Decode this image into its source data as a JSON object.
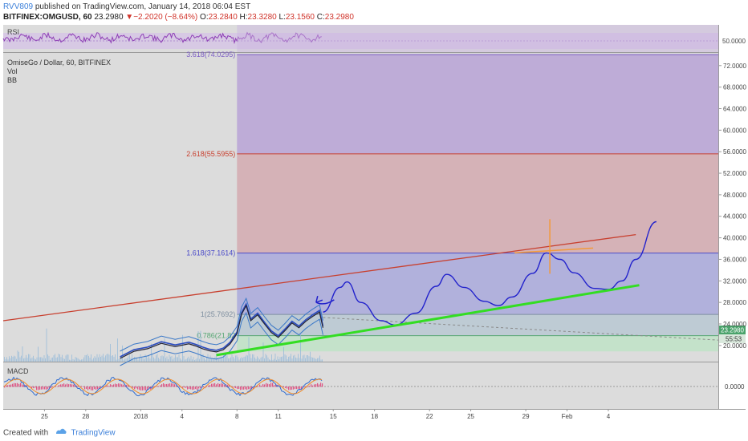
{
  "header": {
    "author": "RVV809",
    "published_text": "published on TradingView.com, January 14, 2018 06:04 EST",
    "symbol": "BITFINEX:OMGUSD, 60",
    "last_price": "23.2980",
    "change_arrow": "▼",
    "change": "−2.2020 (−8.64%)",
    "open_label": "O:",
    "open": "23.2840",
    "high_label": "H:",
    "high": "23.3280",
    "low_label": "L:",
    "low": "23.1560",
    "close_label": "C:",
    "close": "23.2980"
  },
  "panes": {
    "rsi_label": "RSI",
    "rsi_level": "50.0000",
    "main_legend": [
      "OmiseGo / Dollar, 60, BITFINEX",
      "Vol",
      "BB"
    ],
    "macd_label": "MACD",
    "macd_level": "0.0000"
  },
  "price_tags": {
    "last": "23.2980",
    "countdown": "55:53"
  },
  "footer": {
    "created_with": "Created with",
    "brand": "TradingView"
  },
  "colors": {
    "fib_top_zone": "#b9a3d6",
    "fib_mid_zone": "#d4aab0",
    "fib_low_zone": "#a9a9dc",
    "rising_line": "#c8402f",
    "support_line": "#33dd22",
    "projection_path": "#2222cc",
    "target_marker": "#f39a3a",
    "price_line": "#222233",
    "bollinger": "#2a4bbf"
  },
  "chart_data": {
    "type": "line",
    "title": "OmiseGo / Dollar, 60, BITFINEX",
    "x_tick_labels": [
      "25",
      "28",
      "2018",
      "4",
      "8",
      "11",
      "15",
      "18",
      "22",
      "25",
      "29",
      "Feb",
      "4"
    ],
    "x_tick_dates": [
      "2017-12-25",
      "2017-12-28",
      "2018-01-01",
      "2018-01-04",
      "2018-01-08",
      "2018-01-11",
      "2018-01-15",
      "2018-01-18",
      "2018-01-22",
      "2018-01-25",
      "2018-01-29",
      "2018-02-01",
      "2018-02-04"
    ],
    "y_tick_labels": [
      "72.0000",
      "68.0000",
      "64.0000",
      "60.0000",
      "56.0000",
      "52.0000",
      "48.0000",
      "44.0000",
      "40.0000",
      "36.0000",
      "32.0000",
      "28.0000",
      "24.0000",
      "20.0000"
    ],
    "ylim": [
      17.0,
      74.5
    ],
    "xlim": [
      "2017-12-22T00:00",
      "2018-02-12T00:00"
    ],
    "fib_levels": [
      {
        "label": "3.618(74.0295)",
        "value": 74.0295
      },
      {
        "label": "2.618(55.5955)",
        "value": 55.5955
      },
      {
        "label": "1.618(37.1614)",
        "value": 37.1614
      },
      {
        "label": "1(25.7692)",
        "value": 25.7692
      },
      {
        "label": "0.786(21.82",
        "value": 21.82
      }
    ],
    "series": [
      {
        "name": "OMGUSD",
        "x": [
          "2017-12-30T12:00",
          "2017-12-31T12:00",
          "2018-01-01T12:00",
          "2018-01-02T12:00",
          "2018-01-03T12:00",
          "2018-01-04T12:00",
          "2018-01-05T00:00",
          "2018-01-05T12:00",
          "2018-01-06T00:00",
          "2018-01-06T12:00",
          "2018-01-07T00:00",
          "2018-01-07T12:00",
          "2018-01-08T00:00",
          "2018-01-08T08:00",
          "2018-01-08T16:00",
          "2018-01-09T00:00",
          "2018-01-09T12:00",
          "2018-01-10T00:00",
          "2018-01-10T12:00",
          "2018-01-11T00:00",
          "2018-01-11T12:00",
          "2018-01-12T00:00",
          "2018-01-12T12:00",
          "2018-01-13T00:00",
          "2018-01-13T12:00",
          "2018-01-14T00:00",
          "2018-01-14T06:00"
        ],
        "values": [
          17.6,
          18.9,
          19.4,
          20.4,
          19.8,
          20.3,
          19.9,
          19.4,
          19.0,
          18.8,
          19.2,
          20.3,
          22.2,
          25.8,
          27.4,
          24.6,
          25.7,
          24.0,
          22.4,
          21.5,
          22.8,
          24.2,
          23.3,
          24.5,
          25.4,
          26.2,
          23.3
        ]
      },
      {
        "name": "Projection",
        "x": [
          "2018-01-14T06:00",
          "2018-01-15T12:00",
          "2018-01-16T00:00",
          "2018-01-17T00:00",
          "2018-01-18T12:00",
          "2018-01-19T12:00",
          "2018-01-21T00:00",
          "2018-01-22T12:00",
          "2018-01-23T06:00",
          "2018-01-24T12:00",
          "2018-01-26T00:00",
          "2018-01-27T00:00",
          "2018-01-28T00:00",
          "2018-01-29T12:00",
          "2018-01-30T12:00",
          "2018-01-31T12:00",
          "2018-02-01T12:00",
          "2018-02-03T00:00",
          "2018-02-04T00:00",
          "2018-02-05T00:00",
          "2018-02-06T00:00",
          "2018-02-07T12:00"
        ],
        "values": [
          26.2,
          30.8,
          31.8,
          28.0,
          24.6,
          23.8,
          26.0,
          31.0,
          33.2,
          30.8,
          28.2,
          27.4,
          29.0,
          33.4,
          37.2,
          36.0,
          33.5,
          30.6,
          30.4,
          32.0,
          36.0,
          43.0
        ]
      },
      {
        "name": "Rising resistance",
        "x": [
          "2017-12-22T00:00",
          "2018-02-06T00:00"
        ],
        "values": [
          24.6,
          40.6
        ]
      },
      {
        "name": "Support",
        "x": [
          "2018-01-06T12:00",
          "2018-02-06T06:00"
        ],
        "values": [
          18.2,
          31.2
        ]
      }
    ],
    "annotations": [
      {
        "type": "arrow",
        "from": {
          "x": "2018-01-14T06:00",
          "y": 26.4
        },
        "to": {
          "x": "2018-01-13T18:00",
          "y": 28.0
        }
      },
      {
        "type": "cross",
        "at": {
          "x": "2018-01-30T18:00",
          "y": 37.5
        }
      }
    ]
  }
}
